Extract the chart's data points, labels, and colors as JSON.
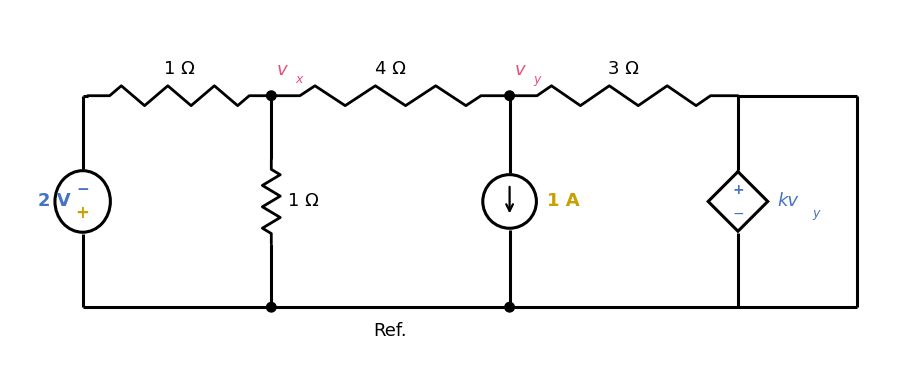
{
  "bg_color": "#ffffff",
  "line_color": "#000000",
  "node_color": "#000000",
  "vx_color": "#e8507a",
  "vy_color": "#e8507a",
  "kvy_color": "#4472c4",
  "source_2v_color": "#4472c4",
  "source_1a_color": "#c8a000",
  "plus_color": "#c8a000",
  "minus_color": "#4472c4",
  "wire_lw": 2.2,
  "ref_label": "Ref.",
  "label_1ohm_top": "1 Ω",
  "label_4ohm_top": "4 Ω",
  "label_3ohm_top": "3 Ω",
  "label_1ohm_mid": "1 Ω",
  "label_2v": "2 V",
  "label_1a": "1 A",
  "label_vx": "v",
  "label_vx_sub": "x",
  "label_vy": "v",
  "label_vy_sub": "y",
  "label_kvy": "kv",
  "label_kvy_sub": "y",
  "label_plus": "+",
  "label_minus": "−"
}
